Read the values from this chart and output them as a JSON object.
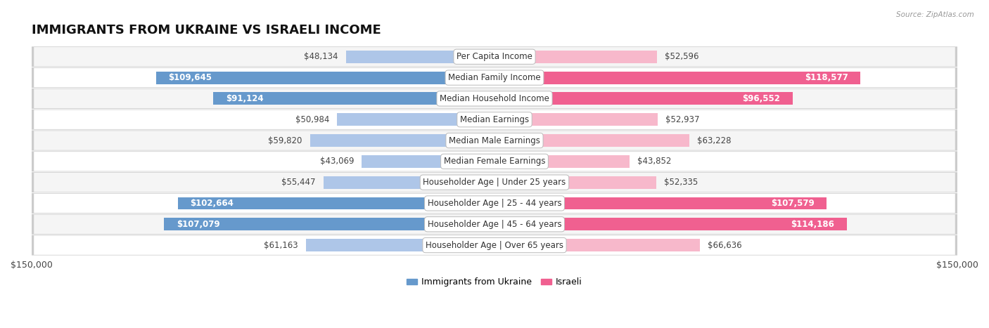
{
  "title": "IMMIGRANTS FROM UKRAINE VS ISRAELI INCOME",
  "source": "Source: ZipAtlas.com",
  "categories": [
    "Per Capita Income",
    "Median Family Income",
    "Median Household Income",
    "Median Earnings",
    "Median Male Earnings",
    "Median Female Earnings",
    "Householder Age | Under 25 years",
    "Householder Age | 25 - 44 years",
    "Householder Age | 45 - 64 years",
    "Householder Age | Over 65 years"
  ],
  "ukraine_values": [
    48134,
    109645,
    91124,
    50984,
    59820,
    43069,
    55447,
    102664,
    107079,
    61163
  ],
  "israeli_values": [
    52596,
    118577,
    96552,
    52937,
    63228,
    43852,
    52335,
    107579,
    114186,
    66636
  ],
  "ukraine_labels": [
    "$48,134",
    "$109,645",
    "$91,124",
    "$50,984",
    "$59,820",
    "$43,069",
    "$55,447",
    "$102,664",
    "$107,079",
    "$61,163"
  ],
  "israeli_labels": [
    "$52,596",
    "$118,577",
    "$96,552",
    "$52,937",
    "$63,228",
    "$43,852",
    "$52,335",
    "$107,579",
    "$114,186",
    "$66,636"
  ],
  "ukraine_color_light": "#aec6e8",
  "ukraine_color_dark": "#6699cc",
  "israeli_color_light": "#f7b8cb",
  "israeli_color_dark": "#f06090",
  "max_value": 150000,
  "xlabel_left": "$150,000",
  "xlabel_right": "$150,000",
  "legend_ukraine": "Immigrants from Ukraine",
  "legend_israeli": "Israeli",
  "bar_height": 0.6,
  "row_bg_colors": [
    "#f5f5f5",
    "#ffffff",
    "#f5f5f5",
    "#ffffff",
    "#f5f5f5",
    "#ffffff",
    "#f5f5f5",
    "#ffffff",
    "#f5f5f5",
    "#ffffff"
  ],
  "title_fontsize": 13,
  "label_fontsize": 8.5,
  "category_fontsize": 8.5,
  "inbar_threshold": 75000
}
